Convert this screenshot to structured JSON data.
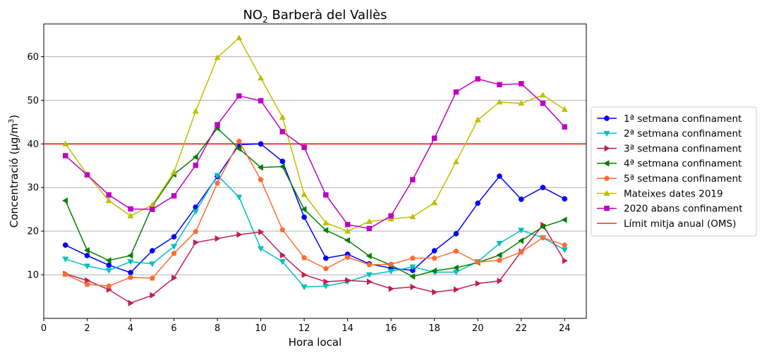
{
  "chart_data": {
    "type": "line",
    "title_main": "NO",
    "title_sub": "2",
    "title_rest": " Barberà del Vallès",
    "xlabel": "Hora local",
    "ylabel_pre": "Concentració (μg/m",
    "ylabel_sup": "3",
    "ylabel_post": ")",
    "xlim": [
      0,
      25
    ],
    "ylim": [
      0,
      67.5
    ],
    "xticks": [
      0,
      2,
      4,
      6,
      8,
      10,
      12,
      14,
      16,
      18,
      20,
      22,
      24
    ],
    "yticks": [
      10,
      20,
      30,
      40,
      50,
      60
    ],
    "grid": "horizontal",
    "legend_position": "outside-right",
    "x": [
      1,
      2,
      3,
      4,
      5,
      6,
      7,
      8,
      9,
      10,
      11,
      12,
      13,
      14,
      15,
      16,
      17,
      18,
      19,
      20,
      21,
      22,
      23,
      24
    ],
    "series": [
      {
        "name": "1ª setmana confinament",
        "color": "#0000ff",
        "marker": "circle",
        "values": [
          16.8,
          14.4,
          12.2,
          10.5,
          15.5,
          18.7,
          25.5,
          32.5,
          39.8,
          40.0,
          36.0,
          23.2,
          13.8,
          14.7,
          12.5,
          11.5,
          11.0,
          15.5,
          19.4,
          26.4,
          32.6,
          27.3,
          30.0,
          27.4
        ]
      },
      {
        "name": "2ª setmana confinament",
        "color": "#00bfbf",
        "marker": "triangle-down",
        "values": [
          13.6,
          12.0,
          11.0,
          13.0,
          12.5,
          16.5,
          24.5,
          32.8,
          27.8,
          16.0,
          13.0,
          7.2,
          7.4,
          8.4,
          10.0,
          10.8,
          11.8,
          10.6,
          10.6,
          13.0,
          17.2,
          20.2,
          18.5,
          15.7
        ]
      },
      {
        "name": "3ª setmana confinament",
        "color": "#bf1f4f",
        "marker": "triangle-right",
        "values": [
          10.2,
          8.7,
          6.6,
          3.5,
          5.3,
          9.3,
          17.4,
          18.3,
          19.2,
          19.8,
          14.5,
          10.0,
          8.4,
          8.7,
          8.4,
          6.8,
          7.2,
          6.0,
          6.6,
          8.0,
          8.6,
          15.3,
          21.4,
          13.2
        ]
      },
      {
        "name": "4ª setmana confinament",
        "color": "#008000",
        "marker": "triangle-left",
        "values": [
          27.0,
          15.6,
          13.3,
          14.4,
          25.7,
          33.0,
          37.0,
          43.6,
          38.9,
          34.6,
          34.8,
          25.0,
          20.2,
          17.9,
          14.3,
          12.2,
          9.6,
          10.9,
          11.6,
          12.8,
          14.5,
          17.8,
          21.0,
          22.6
        ]
      },
      {
        "name": "5ª setmana confinament",
        "color": "#ff6a2f",
        "marker": "pentagon",
        "values": [
          10.1,
          7.8,
          7.4,
          9.4,
          9.2,
          14.9,
          19.9,
          31.0,
          40.6,
          31.8,
          20.3,
          13.9,
          11.4,
          14.0,
          12.3,
          12.4,
          13.8,
          13.8,
          15.4,
          12.9,
          13.3,
          15.2,
          18.5,
          16.8
        ]
      },
      {
        "name": "Mateixes dates 2019",
        "color": "#bfbf00",
        "marker": "triangle-up",
        "values": [
          40.0,
          33.0,
          27.0,
          23.5,
          26.0,
          33.5,
          47.5,
          59.8,
          64.3,
          55.1,
          46.1,
          28.4,
          21.9,
          20.0,
          22.2,
          22.8,
          23.3,
          26.5,
          35.9,
          45.5,
          49.6,
          49.3,
          51.2,
          47.9
        ]
      },
      {
        "name": "2020 abans confinament",
        "color": "#bf00bf",
        "marker": "square",
        "values": [
          37.3,
          32.9,
          28.3,
          25.1,
          25.0,
          28.1,
          35.1,
          44.4,
          51.0,
          49.9,
          42.8,
          39.2,
          28.3,
          21.5,
          20.6,
          23.5,
          31.8,
          41.3,
          51.9,
          54.9,
          53.6,
          53.8,
          49.3,
          43.9
        ]
      }
    ],
    "hline": {
      "name": "Límit mitja anual (OMS)",
      "value": 40,
      "color": "#e8302a"
    }
  }
}
